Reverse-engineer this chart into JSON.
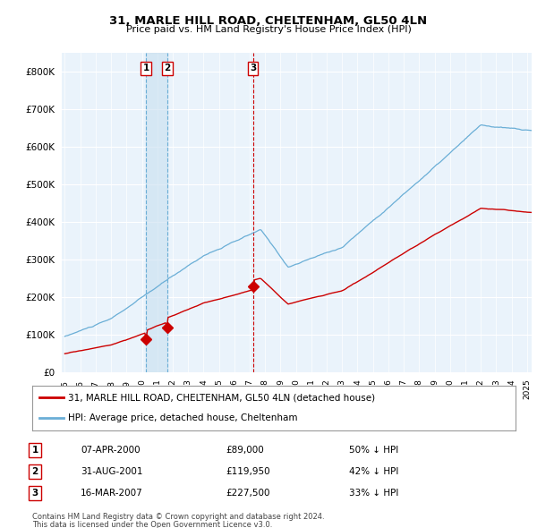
{
  "title": "31, MARLE HILL ROAD, CHELTENHAM, GL50 4LN",
  "subtitle": "Price paid vs. HM Land Registry's House Price Index (HPI)",
  "ylim": [
    0,
    850000
  ],
  "yticks": [
    0,
    100000,
    200000,
    300000,
    400000,
    500000,
    600000,
    700000,
    800000
  ],
  "ytick_labels": [
    "£0",
    "£100K",
    "£200K",
    "£300K",
    "£400K",
    "£500K",
    "£600K",
    "£700K",
    "£800K"
  ],
  "hpi_color": "#6aaed6",
  "price_color": "#cc0000",
  "background_color": "#eaf3fb",
  "grid_color": "#ffffff",
  "purchases": [
    {
      "label": "1",
      "date": "07-APR-2000",
      "price": 89000,
      "hpi_pct": "50% ↓ HPI",
      "year": 2000.27
    },
    {
      "label": "2",
      "date": "31-AUG-2001",
      "price": 119950,
      "hpi_pct": "42% ↓ HPI",
      "year": 2001.66
    },
    {
      "label": "3",
      "date": "16-MAR-2007",
      "price": 227500,
      "hpi_pct": "33% ↓ HPI",
      "year": 2007.21
    }
  ],
  "legend_line1": "31, MARLE HILL ROAD, CHELTENHAM, GL50 4LN (detached house)",
  "legend_line2": "HPI: Average price, detached house, Cheltenham",
  "footer_line1": "Contains HM Land Registry data © Crown copyright and database right 2024.",
  "footer_line2": "This data is licensed under the Open Government Licence v3.0.",
  "x_start_year": 1995,
  "x_end_year": 2025
}
